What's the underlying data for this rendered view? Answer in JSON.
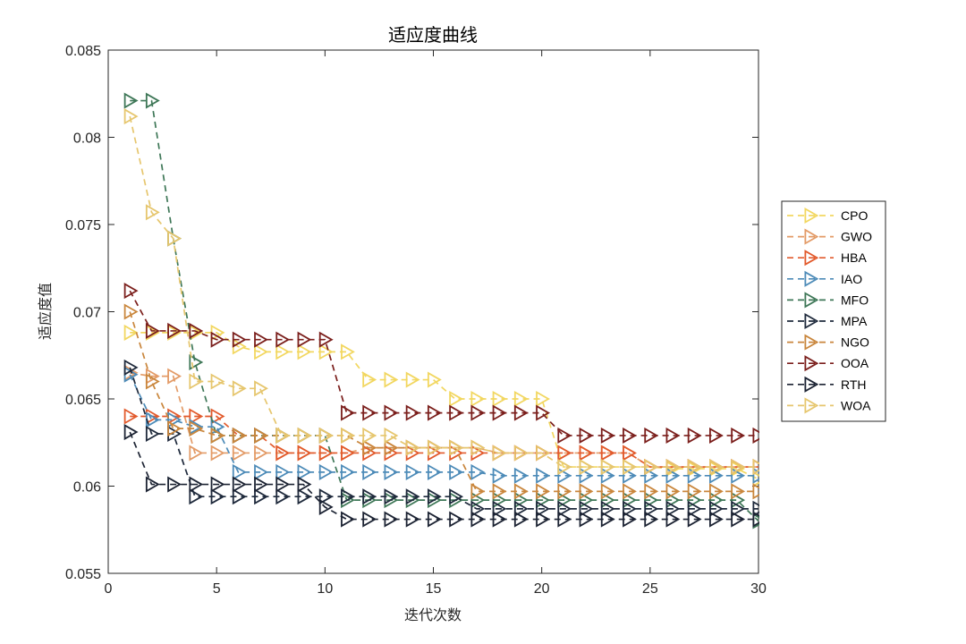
{
  "chart_data": {
    "type": "line",
    "title": "适应度曲线",
    "xlabel": "迭代次数",
    "ylabel": "适应度值",
    "xlim": [
      0,
      30
    ],
    "ylim": [
      0.055,
      0.085
    ],
    "x_ticks": [
      "0",
      "5",
      "10",
      "15",
      "20",
      "25",
      "30"
    ],
    "y_ticks": [
      "0.055",
      "0.06",
      "0.065",
      "0.07",
      "0.075",
      "0.08",
      "0.085"
    ],
    "legend_position": "right",
    "grid": false,
    "marker": "triangle-right",
    "line_style": "dashed",
    "x": [
      1,
      2,
      3,
      4,
      5,
      6,
      7,
      8,
      9,
      10,
      11,
      12,
      13,
      14,
      15,
      16,
      17,
      18,
      19,
      20,
      21,
      22,
      23,
      24,
      25,
      26,
      27,
      28,
      29,
      30
    ],
    "series": [
      {
        "name": "CPO",
        "color": "#f2d760",
        "values": [
          0.0688,
          0.0688,
          0.0688,
          0.0688,
          0.0688,
          0.068,
          0.0677,
          0.0677,
          0.0677,
          0.0677,
          0.0677,
          0.0661,
          0.0661,
          0.0661,
          0.0661,
          0.065,
          0.065,
          0.065,
          0.065,
          0.065,
          0.0611,
          0.0611,
          0.0611,
          0.0611,
          0.0611,
          0.061,
          0.061,
          0.061,
          0.061,
          0.0604
        ]
      },
      {
        "name": "GWO",
        "color": "#e39b67",
        "values": [
          0.0665,
          0.0663,
          0.0663,
          0.0619,
          0.0619,
          0.0619,
          0.0619,
          0.0619,
          0.0619,
          0.0619,
          0.0619,
          0.0622,
          0.0622,
          0.0622,
          0.0622,
          0.0622,
          0.0622,
          0.0619,
          0.0619,
          0.0619,
          0.0619,
          0.0619,
          0.0619,
          0.0619,
          0.0611,
          0.0611,
          0.0611,
          0.0611,
          0.0611,
          0.0611
        ]
      },
      {
        "name": "HBA",
        "color": "#e25a2c",
        "values": [
          0.064,
          0.064,
          0.064,
          0.064,
          0.064,
          0.0629,
          0.0629,
          0.0619,
          0.0619,
          0.0619,
          0.0619,
          0.0619,
          0.0619,
          0.0619,
          0.0619,
          0.0619,
          0.0619,
          0.0619,
          0.0619,
          0.0619,
          0.0619,
          0.0619,
          0.0619,
          0.0619,
          0.0611,
          0.0611,
          0.0611,
          0.0611,
          0.0611,
          0.0611
        ]
      },
      {
        "name": "IAO",
        "color": "#4d8bb8",
        "values": [
          0.0664,
          0.0638,
          0.0638,
          0.0634,
          0.0634,
          0.0608,
          0.0608,
          0.0608,
          0.0608,
          0.0608,
          0.0608,
          0.0608,
          0.0608,
          0.0608,
          0.0608,
          0.0608,
          0.0608,
          0.0606,
          0.0606,
          0.0606,
          0.0606,
          0.0606,
          0.0606,
          0.0606,
          0.0606,
          0.0606,
          0.0606,
          0.0606,
          0.0606,
          0.0606
        ]
      },
      {
        "name": "MFO",
        "color": "#3e7757",
        "values": [
          0.0821,
          0.0821,
          0.0742,
          0.0671,
          0.0629,
          0.0629,
          0.0629,
          0.0629,
          0.0629,
          0.0629,
          0.0592,
          0.0592,
          0.0592,
          0.0592,
          0.0592,
          0.0592,
          0.0592,
          0.0592,
          0.0592,
          0.0592,
          0.0592,
          0.0592,
          0.0592,
          0.0592,
          0.0592,
          0.0592,
          0.0592,
          0.0592,
          0.0592,
          0.058
        ]
      },
      {
        "name": "MPA",
        "color": "#1f2a3c",
        "values": [
          0.0668,
          0.063,
          0.063,
          0.0594,
          0.0594,
          0.0594,
          0.0594,
          0.0594,
          0.0594,
          0.0594,
          0.0594,
          0.0594,
          0.0594,
          0.0594,
          0.0594,
          0.0594,
          0.0587,
          0.0587,
          0.0587,
          0.0587,
          0.0587,
          0.0587,
          0.0587,
          0.0587,
          0.0587,
          0.0587,
          0.0587,
          0.0587,
          0.0587,
          0.0587
        ]
      },
      {
        "name": "NGO",
        "color": "#c9863c",
        "values": [
          0.07,
          0.066,
          0.0633,
          0.0633,
          0.0629,
          0.0629,
          0.0629,
          0.0629,
          0.0629,
          0.0629,
          0.0629,
          0.0622,
          0.0622,
          0.0622,
          0.0622,
          0.0622,
          0.0597,
          0.0597,
          0.0597,
          0.0597,
          0.0597,
          0.0597,
          0.0597,
          0.0597,
          0.0597,
          0.0597,
          0.0597,
          0.0597,
          0.0597,
          0.0597
        ]
      },
      {
        "name": "OOA",
        "color": "#7b1f1c",
        "values": [
          0.0712,
          0.0689,
          0.0689,
          0.0689,
          0.0684,
          0.0684,
          0.0684,
          0.0684,
          0.0684,
          0.0684,
          0.0642,
          0.0642,
          0.0642,
          0.0642,
          0.0642,
          0.0642,
          0.0642,
          0.0642,
          0.0642,
          0.0642,
          0.0629,
          0.0629,
          0.0629,
          0.0629,
          0.0629,
          0.0629,
          0.0629,
          0.0629,
          0.0629,
          0.0629
        ]
      },
      {
        "name": "RTH",
        "color": "#1c2333",
        "values": [
          0.0631,
          0.0601,
          0.0601,
          0.0601,
          0.0601,
          0.0601,
          0.0601,
          0.0601,
          0.0601,
          0.0588,
          0.0581,
          0.0581,
          0.0581,
          0.0581,
          0.0581,
          0.0581,
          0.0581,
          0.0581,
          0.0581,
          0.0581,
          0.0581,
          0.0581,
          0.0581,
          0.0581,
          0.0581,
          0.0581,
          0.0581,
          0.0581,
          0.0581,
          0.0581
        ]
      },
      {
        "name": "WOA",
        "color": "#e6c66e",
        "values": [
          0.0812,
          0.0757,
          0.0742,
          0.066,
          0.066,
          0.0656,
          0.0656,
          0.0629,
          0.0629,
          0.0629,
          0.0629,
          0.0629,
          0.0629,
          0.0622,
          0.0622,
          0.0622,
          0.0622,
          0.0619,
          0.0619,
          0.0619,
          0.0611,
          0.0611,
          0.0611,
          0.0611,
          0.0611,
          0.0611,
          0.0611,
          0.0611,
          0.0611,
          0.0611
        ]
      }
    ]
  }
}
